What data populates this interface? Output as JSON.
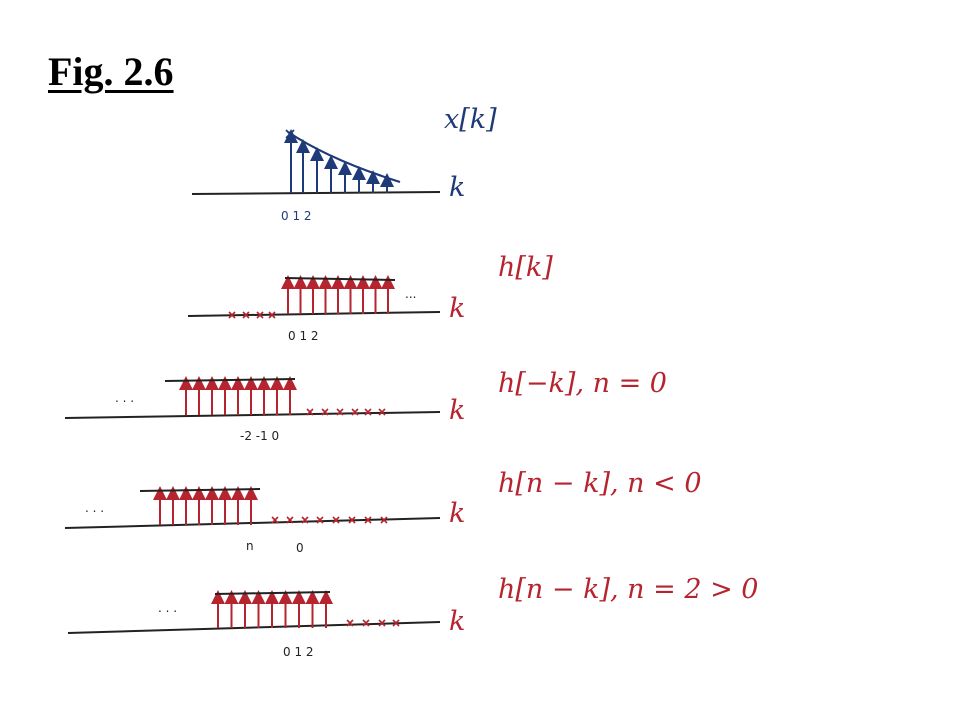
{
  "title": "Fig. 2.6",
  "colors": {
    "navy": "#1f3a78",
    "red": "#b5242f",
    "ink": "#222222"
  },
  "panels": [
    {
      "id": "x",
      "label": "x[k]",
      "axis": "k",
      "ticks": "0 1 2"
    },
    {
      "id": "h",
      "label": "h[k]",
      "axis": "k",
      "ticks": "0 1 2",
      "dots": "..."
    },
    {
      "id": "h-flip",
      "label": "h[−k], n = 0",
      "axis": "k",
      "ticks": "-2 -1 0",
      "dots": ". . ."
    },
    {
      "id": "h-neg",
      "label": "h[n − k], n < 0",
      "axis": "k",
      "ticks_n": "n",
      "ticks_0": "0",
      "dots": ". . ."
    },
    {
      "id": "h-pos",
      "label": "h[n − k], n = 2 > 0",
      "axis": "k",
      "ticks": "0 1 2",
      "dots": ". . ."
    }
  ]
}
